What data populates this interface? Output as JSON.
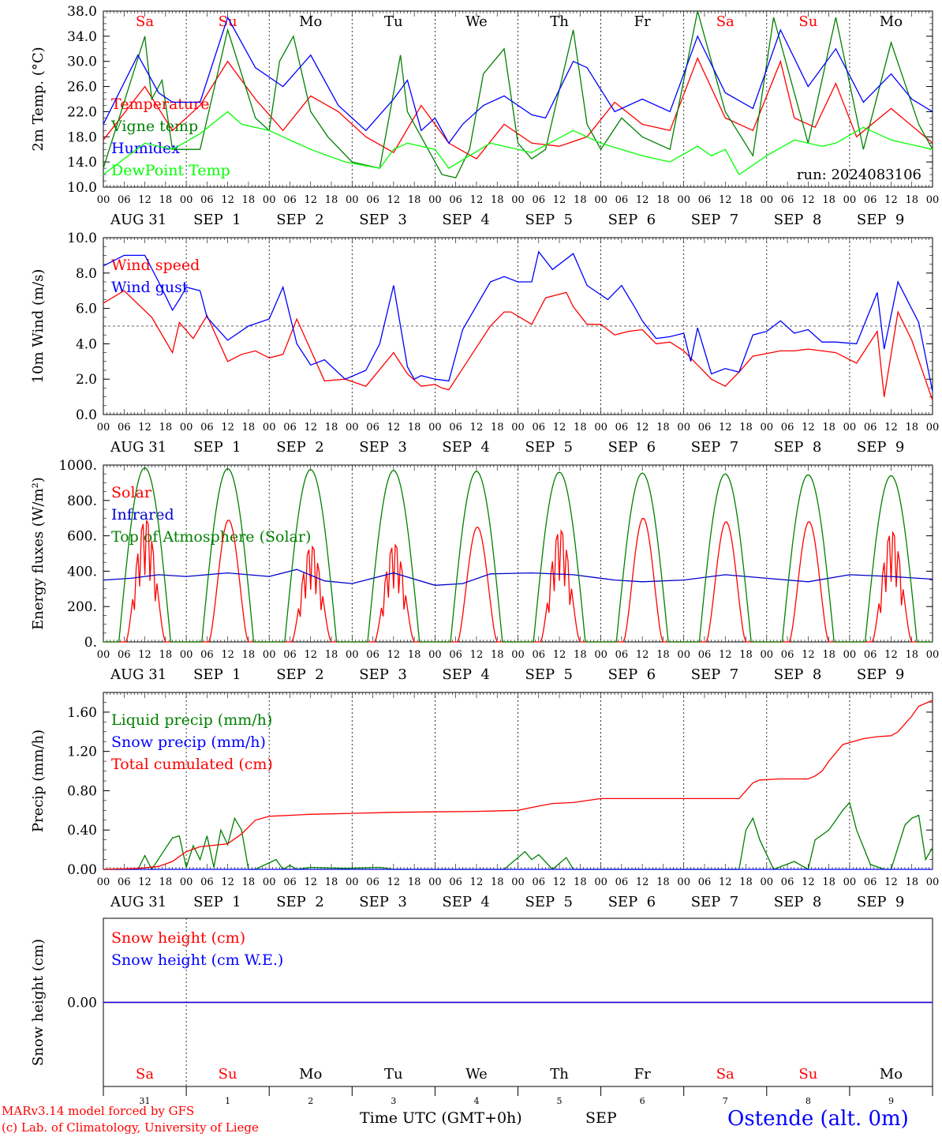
{
  "chart_data": [
    {
      "type": "line",
      "ylabel": "2m Temp. (°C)",
      "ylim": [
        10,
        38
      ],
      "yticks": [
        "10.0",
        "14.0",
        "18.0",
        "22.0",
        "26.0",
        "30.0",
        "34.0",
        "38.0"
      ],
      "x_unit": "hours since 2024-08-31 00 UTC",
      "annotation": "run: 2024083106",
      "day_labels": [
        "Sa",
        "Su",
        "Mo",
        "Tu",
        "We",
        "Th",
        "Fr",
        "Sa",
        "Su",
        "Mo"
      ],
      "series": [
        {
          "name": "Temperature",
          "color": "#ff0000",
          "x": [
            0,
            12,
            20,
            28,
            36,
            44,
            52,
            60,
            68,
            76,
            84,
            92,
            100,
            108,
            116,
            124,
            132,
            140,
            148,
            156,
            164,
            172,
            180,
            188,
            196,
            200,
            206,
            212,
            218,
            228,
            240
          ],
          "values": [
            17.5,
            26,
            19,
            23,
            30,
            24,
            19,
            24.5,
            22,
            18,
            15.5,
            23,
            17,
            14.5,
            20,
            17,
            16.5,
            18,
            23.5,
            20,
            19,
            30.5,
            21,
            19,
            30,
            21,
            19.5,
            26.5,
            18,
            22.5,
            17
          ]
        },
        {
          "name": "Vigne temp",
          "color": "#008000",
          "x": [
            0,
            12,
            14,
            17,
            20,
            28,
            36,
            44,
            48,
            51,
            55,
            60,
            65,
            72,
            80,
            86,
            88,
            92,
            98,
            102,
            106,
            110,
            116,
            120,
            124,
            128,
            136,
            140,
            144,
            150,
            156,
            164,
            172,
            180,
            188,
            194,
            204,
            212,
            220,
            228,
            236,
            240
          ],
          "values": [
            13,
            34,
            24,
            27,
            16,
            16,
            35,
            21,
            19,
            30,
            34,
            22,
            18,
            14,
            13,
            31,
            22,
            18,
            12,
            11.5,
            16,
            28,
            32,
            17,
            14.5,
            16,
            35,
            20,
            16,
            21,
            18,
            16,
            38,
            22,
            15,
            37,
            17,
            37,
            16,
            33,
            20,
            16
          ]
        },
        {
          "name": "Humidex",
          "color": "#0000ff",
          "x": [
            0,
            10,
            16,
            20,
            28,
            36,
            44,
            52,
            60,
            68,
            76,
            84,
            88,
            92,
            96,
            100,
            104,
            110,
            116,
            124,
            128,
            136,
            140,
            148,
            156,
            164,
            172,
            180,
            188,
            196,
            204,
            212,
            220,
            228,
            234,
            240
          ],
          "values": [
            20,
            31,
            25,
            23.5,
            23.5,
            37,
            29,
            26,
            31,
            23,
            19,
            24,
            27,
            19,
            21,
            17,
            20,
            23,
            24.5,
            21.5,
            21,
            30,
            29,
            22,
            24,
            22,
            34,
            25,
            22.5,
            35,
            26,
            32,
            23.5,
            28,
            24,
            22
          ]
        },
        {
          "name": "DewPoint Temp",
          "color": "#00ff00",
          "x": [
            0,
            12,
            20,
            28,
            36,
            40,
            48,
            52,
            60,
            70,
            80,
            84,
            88,
            96,
            100,
            112,
            124,
            136,
            144,
            156,
            164,
            172,
            176,
            180,
            184,
            192,
            200,
            208,
            212,
            220,
            228,
            240
          ],
          "values": [
            12,
            17,
            16,
            18.5,
            22,
            20,
            19,
            18,
            16,
            14,
            13,
            16,
            17,
            16,
            13,
            17,
            15.5,
            19,
            17,
            15,
            14,
            16.5,
            15,
            16,
            12,
            15,
            17.5,
            16.5,
            17,
            19.5,
            17.5,
            16
          ]
        }
      ]
    },
    {
      "type": "line",
      "ylabel": "10m Wind (m/s)",
      "ylim": [
        0,
        10
      ],
      "yticks": [
        "0.0",
        "2.0",
        "4.0",
        "6.0",
        "8.0",
        "10.0"
      ],
      "reference_line": 5,
      "series": [
        {
          "name": "Wind speed",
          "color": "#ff0000",
          "x": [
            0,
            6,
            14,
            20,
            22,
            26,
            30,
            36,
            40,
            44,
            48,
            52,
            56,
            64,
            70,
            76,
            84,
            88,
            92,
            96,
            98,
            100,
            104,
            112,
            116,
            118,
            124,
            128,
            134,
            136,
            140,
            144,
            148,
            152,
            156,
            160,
            164,
            168,
            172,
            176,
            180,
            184,
            188,
            196,
            200,
            204,
            212,
            218,
            224,
            226,
            230,
            234,
            240
          ],
          "values": [
            6.3,
            7.0,
            5.5,
            3.5,
            5.2,
            4.3,
            5.6,
            3.0,
            3.4,
            3.6,
            3.2,
            3.4,
            5.4,
            1.9,
            2.0,
            1.6,
            3.5,
            2.3,
            1.6,
            1.7,
            1.5,
            1.4,
            2.6,
            5.0,
            5.8,
            5.8,
            5.1,
            6.6,
            6.9,
            6.1,
            5.1,
            5.1,
            4.5,
            4.7,
            4.8,
            4.0,
            4.1,
            3.6,
            2.8,
            2.0,
            1.6,
            2.4,
            3.3,
            3.6,
            3.6,
            3.7,
            3.5,
            2.9,
            4.7,
            1.0,
            5.8,
            4.2,
            0.8
          ]
        },
        {
          "name": "Wind gust",
          "color": "#0000ff",
          "x": [
            0,
            6,
            12,
            16,
            20,
            22,
            24,
            28,
            30,
            36,
            42,
            48,
            52,
            56,
            60,
            64,
            70,
            76,
            80,
            84,
            88,
            90,
            92,
            96,
            100,
            104,
            112,
            116,
            120,
            124,
            126,
            130,
            136,
            140,
            146,
            150,
            154,
            156,
            160,
            164,
            168,
            170,
            172,
            176,
            180,
            184,
            188,
            192,
            196,
            200,
            204,
            208,
            212,
            218,
            224,
            226,
            230,
            236,
            240
          ],
          "values": [
            8.4,
            9.0,
            9.0,
            7.5,
            5.9,
            6.5,
            7.2,
            7.0,
            5.5,
            4.2,
            5.0,
            5.4,
            7.2,
            4.0,
            2.8,
            3.1,
            2.0,
            2.5,
            4.0,
            7.3,
            2.7,
            2.0,
            2.2,
            2.0,
            1.9,
            4.8,
            7.5,
            7.8,
            7.5,
            7.5,
            9.2,
            8.2,
            9.1,
            7.3,
            6.5,
            7.3,
            6.0,
            5.3,
            4.3,
            4.4,
            4.6,
            3.0,
            4.9,
            2.3,
            2.6,
            2.4,
            4.5,
            4.7,
            5.3,
            4.6,
            4.8,
            4.1,
            4.1,
            4.0,
            6.9,
            3.7,
            7.5,
            5.2,
            1.3
          ]
        }
      ]
    },
    {
      "type": "line",
      "ylabel": "Energy fluxes (W/m²)",
      "ylim": [
        0,
        1000
      ],
      "yticks": [
        "0.",
        "200.",
        "400.",
        "600.",
        "800.",
        "1000."
      ],
      "series": [
        {
          "name": "Solar",
          "color": "#ff0000",
          "daily_peaks": [
            690,
            690,
            540,
            550,
            650,
            630,
            700,
            680,
            680,
            620
          ],
          "noisy_days": [
            0,
            2,
            3,
            5,
            9
          ]
        },
        {
          "name": "Infrared",
          "color": "#0000cc",
          "x": [
            0,
            8,
            16,
            24,
            36,
            48,
            56,
            64,
            72,
            84,
            96,
            104,
            112,
            124,
            136,
            148,
            156,
            168,
            180,
            192,
            204,
            216,
            228,
            240
          ],
          "values": [
            350,
            360,
            380,
            370,
            390,
            370,
            410,
            345,
            330,
            390,
            320,
            330,
            385,
            390,
            380,
            350,
            340,
            350,
            380,
            360,
            340,
            380,
            370,
            355
          ]
        },
        {
          "name": "Top of Atmosphere (Solar)",
          "color": "#008000",
          "daily_peaks": [
            985,
            980,
            975,
            970,
            965,
            960,
            955,
            950,
            945,
            940
          ]
        }
      ]
    },
    {
      "type": "line",
      "ylabel": "Precip (mm/h)",
      "ylim": [
        0,
        1.8
      ],
      "yticks": [
        "0.00",
        "0.40",
        "0.80",
        "1.20",
        "1.60"
      ],
      "series": [
        {
          "name": "Liquid precip (mm/h)",
          "color": "#008000",
          "x": [
            0,
            10,
            12,
            14,
            20,
            22,
            24,
            26,
            28,
            30,
            32,
            34,
            36,
            38,
            40,
            42,
            44,
            50,
            52,
            54,
            56,
            60,
            70,
            80,
            84,
            116,
            122,
            124,
            126,
            130,
            134,
            136,
            140,
            144,
            150,
            172,
            180,
            184,
            186,
            188,
            190,
            194,
            200,
            204,
            206,
            210,
            212,
            214,
            216,
            218,
            222,
            226,
            228,
            232,
            234,
            236,
            238,
            240
          ],
          "values": [
            0,
            0,
            0.14,
            0,
            0.32,
            0.34,
            0.02,
            0.24,
            0.1,
            0.34,
            0.02,
            0.4,
            0.25,
            0.52,
            0.4,
            0,
            0,
            0.1,
            0,
            0.04,
            0,
            0.02,
            0.01,
            0.02,
            0,
            0,
            0.18,
            0.1,
            0.15,
            0,
            0.12,
            0,
            0,
            0,
            0,
            0,
            0,
            0,
            0.4,
            0.52,
            0.3,
            0,
            0.08,
            0,
            0.3,
            0.4,
            0.5,
            0.6,
            0.68,
            0.4,
            0.05,
            0,
            0,
            0.45,
            0.52,
            0.55,
            0.1,
            0.22
          ]
        },
        {
          "name": "Snow precip (mm/h)",
          "color": "#0000ff",
          "x": [
            0,
            240
          ],
          "values": [
            0,
            0
          ]
        },
        {
          "name": "Total cumulated (cm)",
          "color": "#ff0000",
          "x": [
            0,
            10,
            16,
            20,
            24,
            28,
            36,
            40,
            44,
            48,
            60,
            72,
            84,
            96,
            108,
            120,
            124,
            130,
            136,
            144,
            168,
            180,
            184,
            186,
            188,
            190,
            196,
            202,
            204,
            206,
            208,
            210,
            214,
            220,
            224,
            228,
            230,
            234,
            236,
            240
          ],
          "values": [
            0,
            0.01,
            0.03,
            0.08,
            0.18,
            0.23,
            0.26,
            0.36,
            0.5,
            0.54,
            0.56,
            0.57,
            0.58,
            0.585,
            0.59,
            0.6,
            0.63,
            0.67,
            0.68,
            0.72,
            0.72,
            0.72,
            0.72,
            0.8,
            0.88,
            0.91,
            0.92,
            0.92,
            0.92,
            0.95,
            1.0,
            1.1,
            1.27,
            1.33,
            1.35,
            1.36,
            1.4,
            1.56,
            1.66,
            1.72
          ]
        }
      ]
    },
    {
      "type": "line",
      "ylabel": "Snow height (cm)",
      "yticks": [
        "0.00"
      ],
      "series": [
        {
          "name": "Snow height (cm)",
          "color": "#ff0000",
          "x": [
            0,
            240
          ],
          "values": [
            0,
            0
          ]
        },
        {
          "name": "Snow height (cm W.E.)",
          "color": "#0000ff",
          "x": [
            0,
            240
          ],
          "values": [
            0,
            0
          ]
        }
      ],
      "day_labels": [
        "Sa",
        "Su",
        "Mo",
        "Tu",
        "We",
        "Th",
        "Fr",
        "Sa",
        "Su",
        "Mo"
      ],
      "date_numbers": [
        "31",
        "1",
        "2",
        "3",
        "4",
        "5",
        "6",
        "7",
        "8",
        "9"
      ]
    }
  ],
  "x_axis": {
    "hour_ticks": [
      "00",
      "06",
      "12",
      "18"
    ],
    "end_tick": "00",
    "dates": [
      "AUG 31",
      "SEP  1",
      "SEP  2",
      "SEP  3",
      "SEP  4",
      "SEP  5",
      "SEP  6",
      "SEP  7",
      "SEP  8",
      "SEP  9"
    ],
    "weekend_days": [
      0,
      1,
      7,
      8
    ]
  },
  "footer": {
    "credit_line1": "MARv3.14 model forced by GFS",
    "credit_line2": "(c) Lab. of Climatology, University of Liege",
    "time_label": "Time UTC (GMT+0h)",
    "month": "SEP",
    "station": "Ostende (alt. 0m)"
  },
  "colors": {
    "weekend": "#ff0000",
    "credit": "#ff0000",
    "station": "#0000ff"
  }
}
